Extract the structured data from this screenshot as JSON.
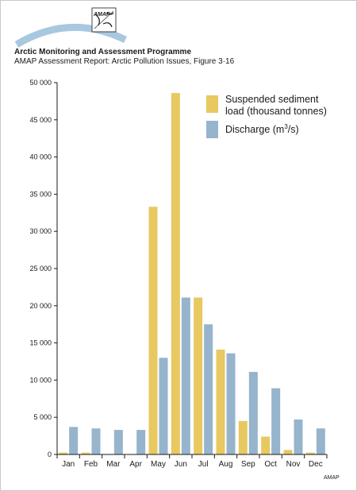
{
  "header": {
    "title": "Arctic Monitoring and Assessment Programme",
    "subtitle": "AMAP Assessment Report: Arctic Pollution Issues, Figure 3·16",
    "logo_text": "AMAP"
  },
  "footer": {
    "credit": "AMAP"
  },
  "colors": {
    "sediment": "#E8C860",
    "discharge": "#96B4CC",
    "arc": "#A8C8E0"
  },
  "chart_data": {
    "type": "bar",
    "title": "",
    "xlabel": "",
    "ylabel": "",
    "ylim": [
      0,
      50000
    ],
    "yticks": [
      0,
      5000,
      10000,
      15000,
      20000,
      25000,
      30000,
      35000,
      40000,
      45000,
      50000
    ],
    "ytick_labels": [
      "0",
      "5 000",
      "10 000",
      "15 000",
      "20 000",
      "25 000",
      "30 000",
      "35 000",
      "40 000",
      "45 000",
      "50 000"
    ],
    "categories": [
      "Jan",
      "Feb",
      "Mar",
      "Apr",
      "May",
      "Jun",
      "Jul",
      "Aug",
      "Sep",
      "Oct",
      "Nov",
      "Dec"
    ],
    "legend_position": "top-right",
    "grid": false,
    "series": [
      {
        "name": "Suspended sediment load (thousand tonnes)",
        "legend_lines": [
          "Suspended sediment",
          "load (thousand tonnes)"
        ],
        "color": "#E8C860",
        "values": [
          250,
          250,
          0,
          0,
          33300,
          48600,
          21100,
          14100,
          4500,
          2400,
          600,
          250
        ]
      },
      {
        "name": "Discharge (m3/s)",
        "legend_main": "Discharge (m",
        "legend_sup": "3",
        "legend_tail": "/s)",
        "color": "#96B4CC",
        "values": [
          3700,
          3500,
          3300,
          3300,
          13000,
          21100,
          17500,
          13600,
          11100,
          8900,
          4700,
          3500
        ]
      }
    ]
  }
}
